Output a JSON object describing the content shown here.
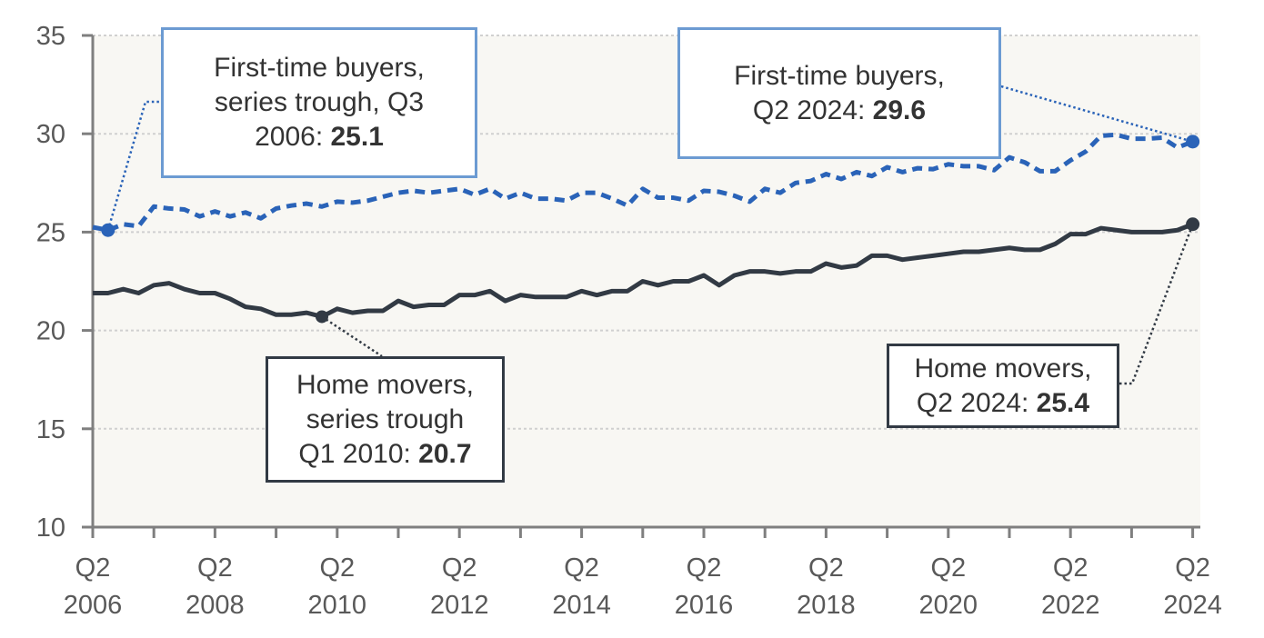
{
  "chart_data": {
    "type": "line",
    "title": "",
    "xlabel": "",
    "ylabel": "",
    "ylim": [
      10,
      35
    ],
    "yticks": [
      10,
      15,
      20,
      25,
      30,
      35
    ],
    "grid": true,
    "x_start": "Q2 2006",
    "x_end": "Q2 2024",
    "x_frequency": "quarterly",
    "xtick_labels": [
      [
        "Q2",
        "2006"
      ],
      [
        "Q2",
        "2008"
      ],
      [
        "Q2",
        "2010"
      ],
      [
        "Q2",
        "2012"
      ],
      [
        "Q2",
        "2014"
      ],
      [
        "Q2",
        "2016"
      ],
      [
        "Q2",
        "2018"
      ],
      [
        "Q2",
        "2020"
      ],
      [
        "Q2",
        "2022"
      ],
      [
        "Q2",
        "2024"
      ]
    ],
    "series": [
      {
        "key": "first_time_buyers",
        "color": "#2A63B8",
        "style": "dashed",
        "values": [
          25.25,
          25.1,
          25.4,
          25.3,
          26.3,
          26.2,
          26.15,
          25.8,
          26.05,
          25.8,
          26.0,
          25.7,
          26.2,
          26.35,
          26.45,
          26.3,
          26.55,
          26.5,
          26.6,
          26.8,
          27.0,
          27.1,
          27.0,
          27.1,
          27.2,
          26.9,
          27.2,
          26.7,
          27.0,
          26.7,
          26.7,
          26.6,
          27.0,
          27.0,
          26.7,
          26.35,
          27.2,
          26.75,
          26.75,
          26.6,
          27.1,
          27.05,
          26.85,
          26.55,
          27.2,
          27.0,
          27.5,
          27.6,
          27.95,
          27.7,
          28.05,
          27.85,
          28.3,
          28.05,
          28.25,
          28.2,
          28.45,
          28.35,
          28.35,
          28.15,
          28.8,
          28.55,
          28.1,
          28.1,
          28.65,
          29.1,
          29.9,
          29.95,
          29.75,
          29.75,
          29.8,
          29.3,
          29.6
        ]
      },
      {
        "key": "home_movers",
        "color": "#323A44",
        "style": "solid",
        "values": [
          21.9,
          21.9,
          22.1,
          21.9,
          22.3,
          22.4,
          22.1,
          21.9,
          21.9,
          21.6,
          21.2,
          21.1,
          20.8,
          20.8,
          20.9,
          20.7,
          21.1,
          20.9,
          21.0,
          21.0,
          21.5,
          21.2,
          21.3,
          21.3,
          21.8,
          21.8,
          22.0,
          21.5,
          21.8,
          21.7,
          21.7,
          21.7,
          22.0,
          21.8,
          22.0,
          22.0,
          22.5,
          22.3,
          22.5,
          22.5,
          22.8,
          22.3,
          22.8,
          23.0,
          23.0,
          22.9,
          23.0,
          23.0,
          23.4,
          23.2,
          23.3,
          23.8,
          23.8,
          23.6,
          23.7,
          23.8,
          23.9,
          24.0,
          24.0,
          24.1,
          24.2,
          24.1,
          24.1,
          24.4,
          24.9,
          24.9,
          25.2,
          25.1,
          25.0,
          25.0,
          25.0,
          25.1,
          25.4
        ]
      }
    ],
    "annotations": {
      "ftb_trough": {
        "line1": "First-time buyers,",
        "line2": "series trough, Q3",
        "line3": "2006: ",
        "value": "25.1",
        "color": "#6C9BD2"
      },
      "ftb_latest": {
        "line1": "First-time buyers,",
        "line2": "Q2 2024: ",
        "value": "29.6",
        "color": "#6C9BD2"
      },
      "hm_trough": {
        "line1": "Home movers,",
        "line2": "series trough",
        "line3": "Q1 2010: ",
        "value": "20.7",
        "color": "#323A44"
      },
      "hm_latest": {
        "line1": "Home movers,",
        "line2": "Q2 2024: ",
        "value": "25.4",
        "color": "#323A44"
      }
    },
    "plot_background": "#F8F7F3",
    "grid_color": "#D0D0D0",
    "axis_color": "#7F7F7F"
  }
}
